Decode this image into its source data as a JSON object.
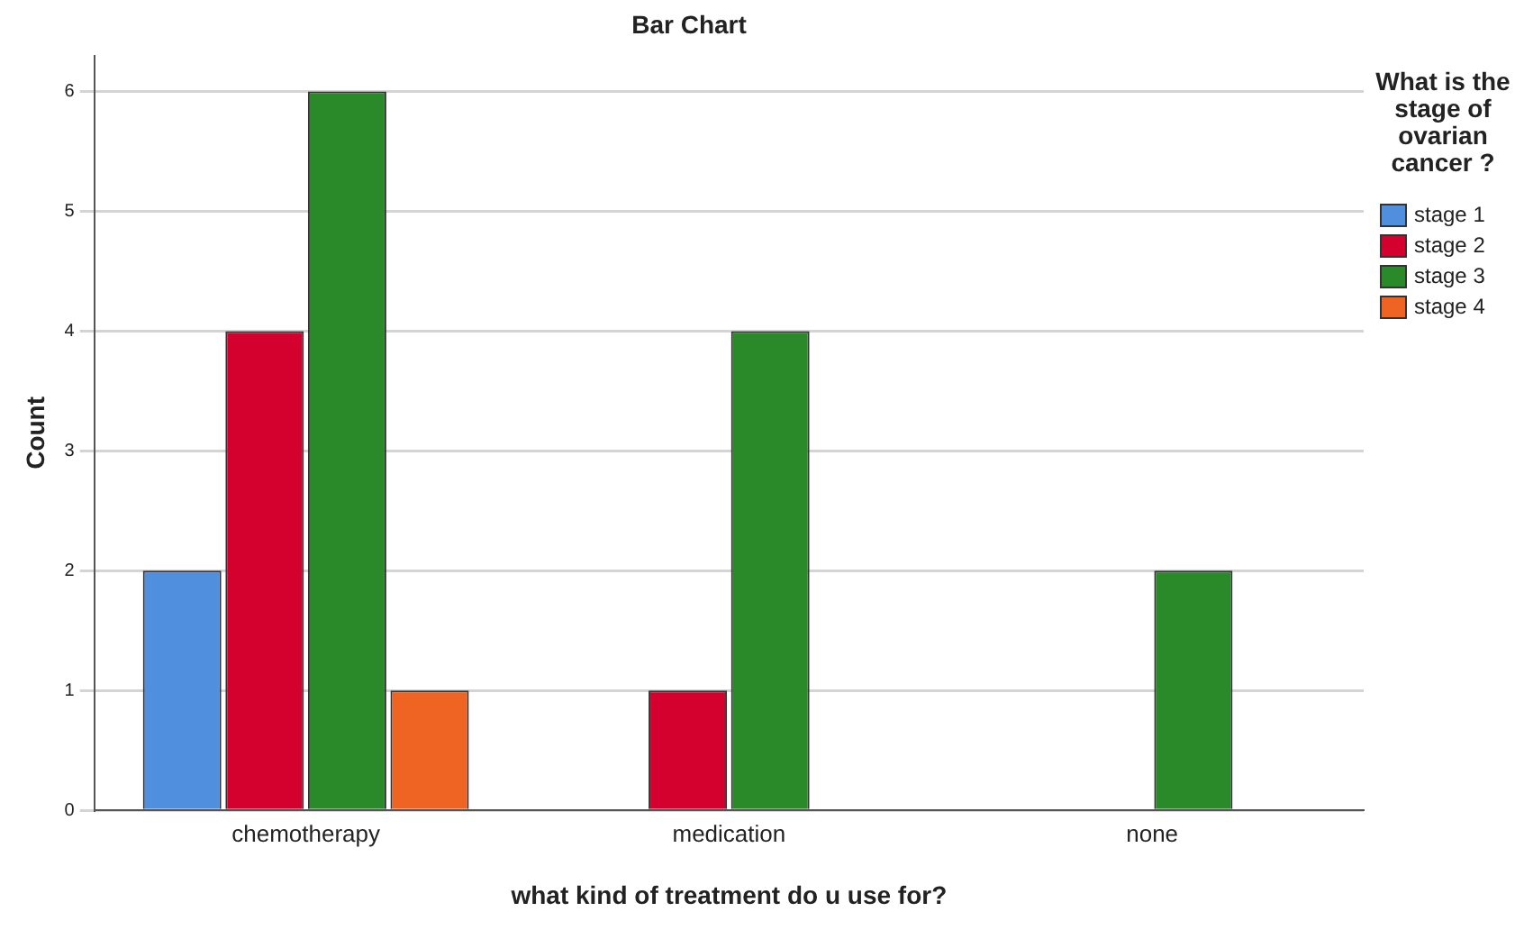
{
  "chart_data": {
    "type": "bar",
    "title": "Bar Chart",
    "xlabel": "what kind of treatment do u use for?",
    "ylabel": "Count",
    "legend_title": "What is the stage of ovarian cancer ?",
    "categories": [
      "chemotherapy",
      "medication",
      "none"
    ],
    "series": [
      {
        "name": "stage 1",
        "color": "#4f8fde",
        "values": [
          2,
          null,
          null
        ]
      },
      {
        "name": "stage 2",
        "color": "#d4002e",
        "values": [
          4,
          1,
          null
        ]
      },
      {
        "name": "stage 3",
        "color": "#2a8a2a",
        "values": [
          6,
          4,
          2
        ]
      },
      {
        "name": "stage 4",
        "color": "#ef6422",
        "values": [
          1,
          null,
          null
        ]
      }
    ],
    "ylim": [
      0,
      6.3
    ],
    "yticks": [
      0,
      1,
      2,
      3,
      4,
      5,
      6
    ],
    "grid": "y",
    "legend": "right"
  }
}
